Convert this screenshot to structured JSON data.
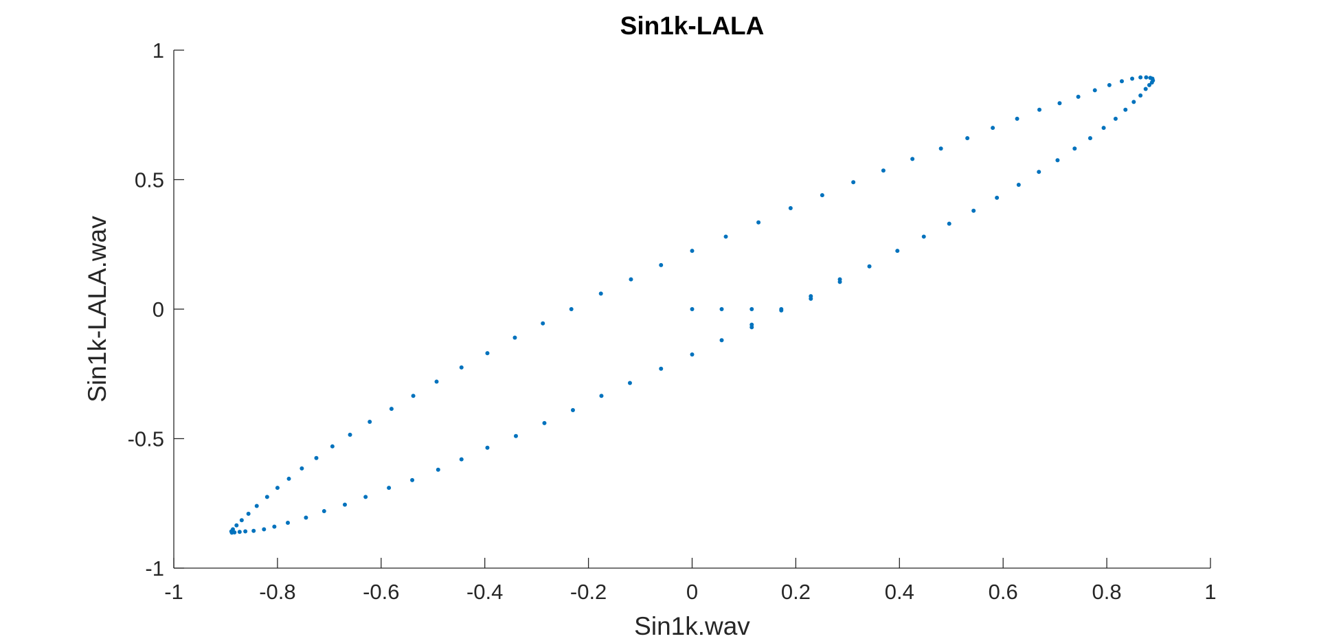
{
  "chart_data": {
    "type": "scatter",
    "title": "Sin1k-LALA",
    "xlabel": "Sin1k.wav",
    "ylabel": "Sin1k-LALA.wav",
    "xlim": [
      -1,
      1
    ],
    "ylim": [
      -1,
      1
    ],
    "xticks": [
      -1,
      -0.8,
      -0.6,
      -0.4,
      -0.2,
      0,
      0.2,
      0.4,
      0.6,
      0.8,
      1
    ],
    "xtick_labels": [
      "-1",
      "-0.8",
      "-0.6",
      "-0.4",
      "-0.2",
      "0",
      "0.2",
      "0.4",
      "0.6",
      "0.8",
      "1"
    ],
    "yticks": [
      -1,
      -0.5,
      0,
      0.5,
      1
    ],
    "ytick_labels": [
      "-1",
      "-0.5",
      "0",
      "0.5",
      "1"
    ],
    "grid": false,
    "box": false,
    "marker_color": "#0072bd",
    "axis_color": "#262626",
    "series": [
      {
        "points": [
          [
            0.0,
            0.0
          ],
          [
            0.057,
            0.0
          ],
          [
            0.115,
            0.0
          ],
          [
            0.172,
            0.0
          ],
          [
            0.172,
            -0.005
          ],
          [
            0.229,
            0.05
          ],
          [
            0.229,
            0.04
          ],
          [
            0.285,
            0.105
          ],
          [
            0.285,
            0.115
          ],
          [
            0.342,
            0.165
          ],
          [
            0.396,
            0.225
          ],
          [
            0.447,
            0.28
          ],
          [
            0.496,
            0.33
          ],
          [
            0.543,
            0.38
          ],
          [
            0.588,
            0.43
          ],
          [
            0.63,
            0.48
          ],
          [
            0.669,
            0.53
          ],
          [
            0.705,
            0.575
          ],
          [
            0.738,
            0.62
          ],
          [
            0.768,
            0.66
          ],
          [
            0.794,
            0.7
          ],
          [
            0.817,
            0.735
          ],
          [
            0.836,
            0.77
          ],
          [
            0.852,
            0.8
          ],
          [
            0.865,
            0.825
          ],
          [
            0.875,
            0.85
          ],
          [
            0.882,
            0.865
          ],
          [
            0.887,
            0.875
          ],
          [
            0.889,
            0.883
          ],
          [
            0.888,
            0.89
          ],
          [
            0.884,
            0.893
          ],
          [
            0.876,
            0.895
          ],
          [
            0.865,
            0.895
          ],
          [
            0.849,
            0.89
          ],
          [
            0.829,
            0.88
          ],
          [
            0.805,
            0.865
          ],
          [
            0.777,
            0.845
          ],
          [
            0.745,
            0.82
          ],
          [
            0.709,
            0.795
          ],
          [
            0.67,
            0.77
          ],
          [
            0.627,
            0.735
          ],
          [
            0.58,
            0.7
          ],
          [
            0.531,
            0.66
          ],
          [
            0.48,
            0.62
          ],
          [
            0.425,
            0.58
          ],
          [
            0.369,
            0.535
          ],
          [
            0.311,
            0.49
          ],
          [
            0.251,
            0.44
          ],
          [
            0.19,
            0.39
          ],
          [
            0.128,
            0.335
          ],
          [
            0.065,
            0.28
          ],
          [
            0.0,
            0.225
          ],
          [
            -0.06,
            0.17
          ],
          [
            -0.118,
            0.115
          ],
          [
            -0.176,
            0.06
          ],
          [
            -0.233,
            0.0
          ],
          [
            -0.288,
            -0.055
          ],
          [
            -0.342,
            -0.11
          ],
          [
            -0.395,
            -0.17
          ],
          [
            -0.445,
            -0.225
          ],
          [
            -0.493,
            -0.28
          ],
          [
            -0.538,
            -0.335
          ],
          [
            -0.58,
            -0.385
          ],
          [
            -0.622,
            -0.435
          ],
          [
            -0.66,
            -0.485
          ],
          [
            -0.694,
            -0.53
          ],
          [
            -0.725,
            -0.575
          ],
          [
            -0.753,
            -0.615
          ],
          [
            -0.778,
            -0.655
          ],
          [
            -0.8,
            -0.69
          ],
          [
            -0.82,
            -0.725
          ],
          [
            -0.84,
            -0.76
          ],
          [
            -0.856,
            -0.79
          ],
          [
            -0.869,
            -0.815
          ],
          [
            -0.879,
            -0.835
          ],
          [
            -0.886,
            -0.85
          ],
          [
            -0.889,
            -0.858
          ],
          [
            -0.888,
            -0.863
          ],
          [
            -0.883,
            -0.862
          ],
          [
            -0.873,
            -0.86
          ],
          [
            -0.862,
            -0.858
          ],
          [
            -0.846,
            -0.856
          ],
          [
            -0.826,
            -0.85
          ],
          [
            -0.806,
            -0.84
          ],
          [
            -0.78,
            -0.825
          ],
          [
            -0.745,
            -0.805
          ],
          [
            -0.71,
            -0.78
          ],
          [
            -0.67,
            -0.755
          ],
          [
            -0.63,
            -0.725
          ],
          [
            -0.585,
            -0.69
          ],
          [
            -0.54,
            -0.66
          ],
          [
            -0.49,
            -0.62
          ],
          [
            -0.445,
            -0.58
          ],
          [
            -0.395,
            -0.535
          ],
          [
            -0.34,
            -0.49
          ],
          [
            -0.285,
            -0.44
          ],
          [
            -0.23,
            -0.39
          ],
          [
            -0.175,
            -0.335
          ],
          [
            -0.12,
            -0.285
          ],
          [
            -0.06,
            -0.23
          ],
          [
            0.0,
            -0.175
          ],
          [
            0.057,
            -0.12
          ],
          [
            0.115,
            -0.06
          ],
          [
            0.115,
            -0.07
          ]
        ]
      }
    ]
  }
}
